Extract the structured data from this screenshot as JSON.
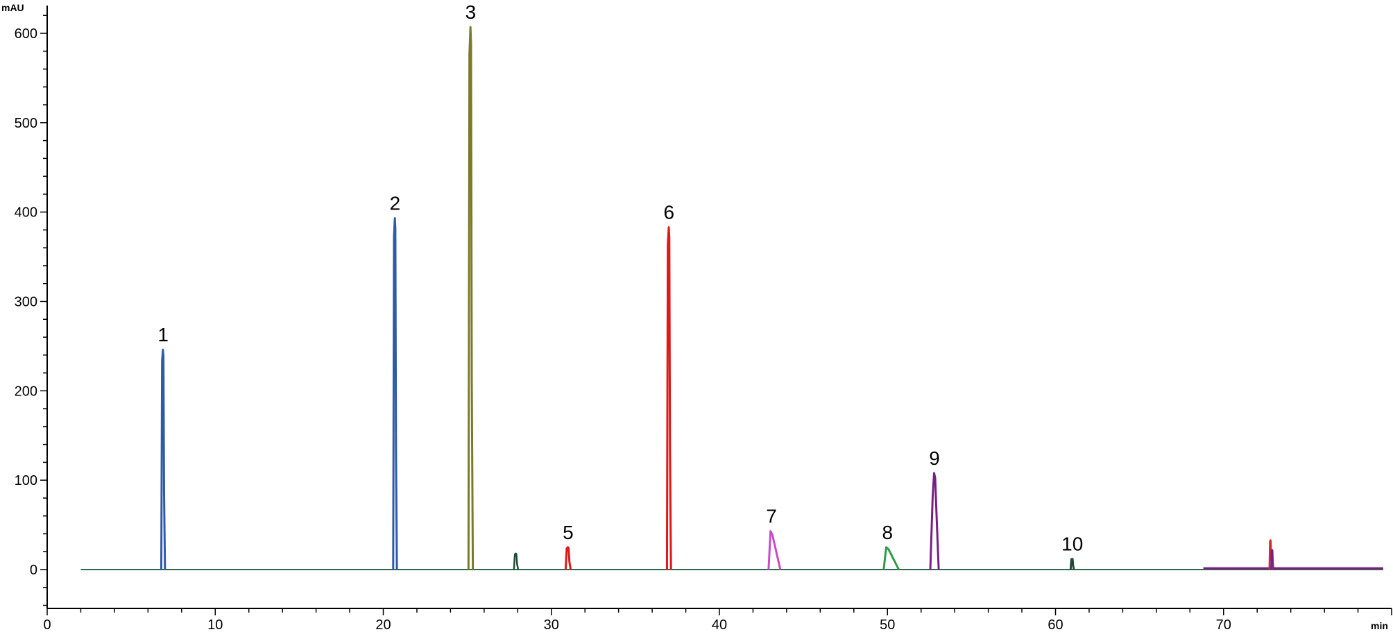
{
  "chart_data": {
    "type": "line",
    "title": "",
    "ylabel": "mAU",
    "xlabel": "min",
    "xlim": [
      0,
      80
    ],
    "ylim": [
      -45,
      630
    ],
    "x_ticks": [
      0,
      10,
      20,
      30,
      40,
      50,
      60,
      70
    ],
    "x_tick_labels": [
      "0",
      "10",
      "20",
      "30",
      "40",
      "50",
      "60",
      "70"
    ],
    "y_ticks": [
      0,
      100,
      200,
      300,
      400,
      500,
      600
    ],
    "y_tick_labels": [
      "0",
      "100",
      "200",
      "300",
      "400",
      "500",
      "600"
    ],
    "grid": false,
    "baseline_color": "#2e6b4b",
    "peaks": [
      {
        "label": "1",
        "x": 6.9,
        "height": 246,
        "width": 0.22,
        "color": "#2e5aa8",
        "shape": "sharp"
      },
      {
        "label": "2",
        "x": 20.7,
        "height": 393,
        "width": 0.22,
        "color": "#2e5aa8",
        "shape": "sharp"
      },
      {
        "label": "3",
        "x": 25.2,
        "height": 607,
        "width": 0.26,
        "color": "#7a7a2a",
        "shape": "sharp"
      },
      {
        "label": "5",
        "x": 31.0,
        "height": 25,
        "width": 0.3,
        "color": "#e01818",
        "shape": "sharp"
      },
      {
        "label": "6",
        "x": 37.0,
        "height": 383,
        "width": 0.24,
        "color": "#e01818",
        "shape": "sharp"
      },
      {
        "label": "7",
        "x": 43.1,
        "height": 43,
        "width": 0.7,
        "color": "#c84cc8",
        "shape": "tailing"
      },
      {
        "label": "8",
        "x": 50.0,
        "height": 25,
        "width": 0.9,
        "color": "#2e9a4a",
        "shape": "tailing"
      },
      {
        "label": "9",
        "x": 52.8,
        "height": 108,
        "width": 0.5,
        "color": "#7a1e86",
        "shape": "broad"
      },
      {
        "label": "10",
        "x": 61.0,
        "height": 12,
        "width": 0.2,
        "color": "#1e4a36",
        "shape": "sharp"
      }
    ],
    "minor_peaks": [
      {
        "x": 27.9,
        "height": 18,
        "width": 0.25,
        "color": "#1e4a36"
      },
      {
        "x": 72.8,
        "height": 33,
        "width": 0.15,
        "color": "#c83030"
      },
      {
        "x": 72.9,
        "height": 22,
        "width": 0.15,
        "color": "#7a1e86"
      }
    ]
  }
}
